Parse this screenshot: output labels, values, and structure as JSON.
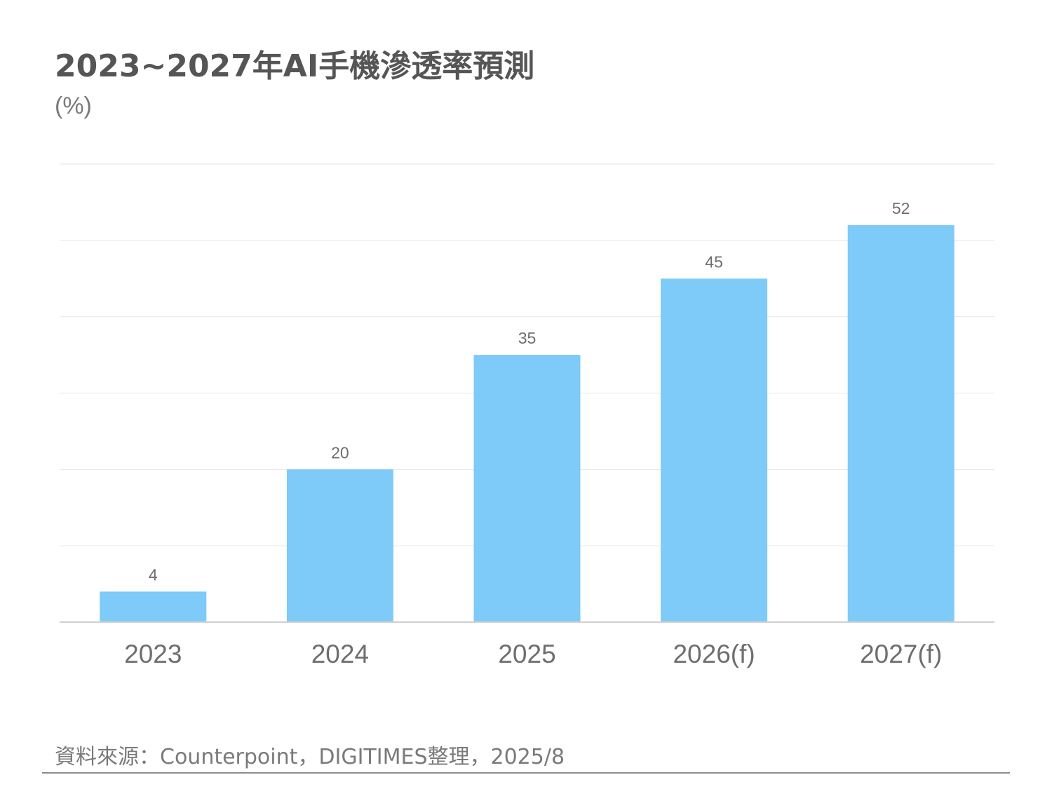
{
  "title": "2023~2027年AI手機滲透率預測",
  "unit": "(%)",
  "source": "資料來源：Counterpoint，DIGITIMES整理，2025/8",
  "colors": {
    "bar": "#7ecaf9",
    "gridline": "#e6e6e6",
    "axis": "#d0d0d0",
    "title": "#555555",
    "label": "#6e6e6e"
  },
  "chart_data": {
    "type": "bar",
    "categories": [
      "2023",
      "2024",
      "2025",
      "2026(f)",
      "2027(f)"
    ],
    "values": [
      4,
      20,
      35,
      45,
      52
    ],
    "data_labels": [
      "4",
      "20",
      "35",
      "45",
      "52"
    ],
    "ylim": [
      0,
      60
    ],
    "gridline_step": 10,
    "grid": true,
    "show_y_ticks": false
  }
}
